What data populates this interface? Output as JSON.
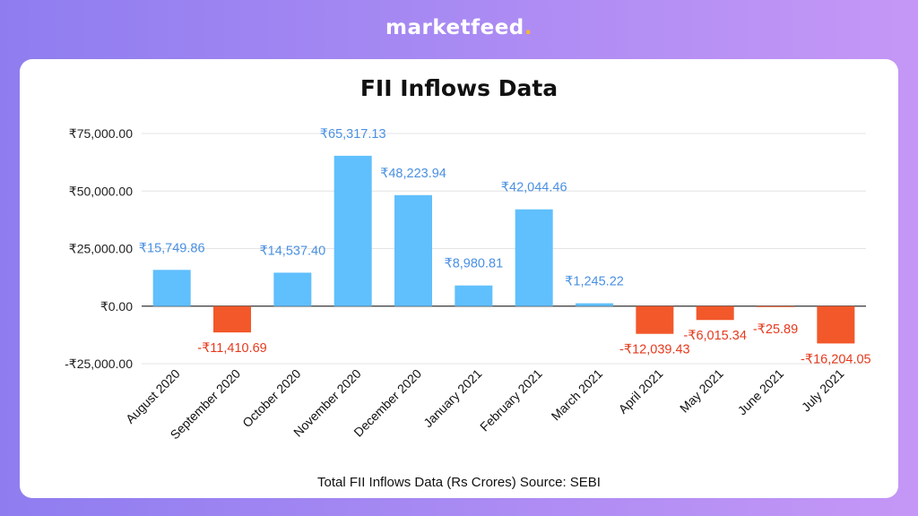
{
  "brand": {
    "name": "marketfeed",
    "dot": "."
  },
  "chart_data": {
    "type": "bar",
    "title": "FII Inflows Data",
    "caption": "Total FII Inflows Data (Rs Crores) Source: SEBI",
    "categories": [
      "August 2020",
      "September 2020",
      "October 2020",
      "November 2020",
      "December 2020",
      "January 2021",
      "February 2021",
      "March 2021",
      "April 2021",
      "May 2021",
      "June 2021",
      "July 2021"
    ],
    "values": [
      15749.86,
      -11410.69,
      14537.4,
      65317.13,
      48223.94,
      8980.81,
      42044.46,
      1245.22,
      -12039.43,
      -6015.34,
      -25.89,
      -16204.05
    ],
    "value_labels": [
      "₹15,749.86",
      "-₹11,410.69",
      "₹14,537.40",
      "₹65,317.13",
      "₹48,223.94",
      "₹8,980.81",
      "₹42,044.46",
      "₹1,245.22",
      "-₹12,039.43",
      "-₹6,015.34",
      "-₹25.89",
      "-₹16,204.05"
    ],
    "yticks": [
      75000,
      50000,
      25000,
      0,
      -25000
    ],
    "ytick_labels": [
      "₹75,000.00",
      "₹50,000.00",
      "₹25,000.00",
      "₹0.00",
      "-₹25,000.00"
    ],
    "ylim": [
      -25000,
      75000
    ],
    "grid": true,
    "colors": {
      "positive": "#60bffd",
      "negative": "#f2582a",
      "positive_label": "#4a90e2",
      "negative_label": "#e53a1d",
      "grid": "#e4e4e4",
      "axis": "#333333"
    }
  }
}
